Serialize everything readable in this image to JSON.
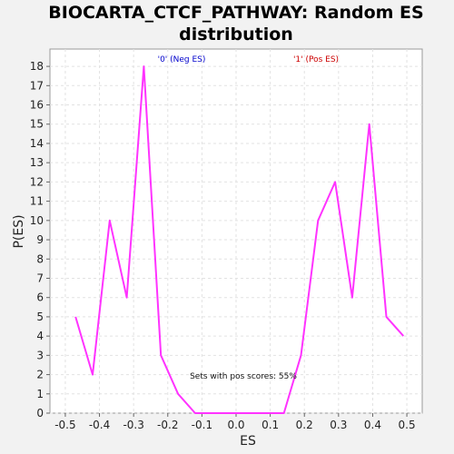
{
  "chart_data": {
    "type": "line",
    "title_lines": [
      "BIOCARTA_CTCF_PATHWAY: Random ES",
      "distribution"
    ],
    "xlabel": "ES",
    "ylabel": "P(ES)",
    "xlim": [
      -0.545,
      0.545
    ],
    "ylim": [
      0,
      18.9
    ],
    "xticks": [
      -0.5,
      -0.4,
      -0.3,
      -0.2,
      -0.1,
      0.0,
      0.1,
      0.2,
      0.3,
      0.4,
      0.5
    ],
    "xtick_labels": [
      "-0.5",
      "-0.4",
      "-0.3",
      "-0.2",
      "-0.1",
      "0.0",
      "0.1",
      "0.2",
      "0.3",
      "0.4",
      "0.5"
    ],
    "yticks": [
      0,
      1,
      2,
      3,
      4,
      5,
      6,
      7,
      8,
      9,
      10,
      11,
      12,
      13,
      14,
      15,
      16,
      17,
      18
    ],
    "ytick_labels": [
      "0",
      "1",
      "2",
      "3",
      "4",
      "5",
      "6",
      "7",
      "8",
      "9",
      "10",
      "11",
      "12",
      "13",
      "14",
      "15",
      "16",
      "17",
      "18"
    ],
    "grid": true,
    "legend": [
      {
        "label": "'0' (Neg ES)",
        "color": "#0000cc"
      },
      {
        "label": "'1' (Pos ES)",
        "color": "#cc0000"
      }
    ],
    "annotation": "Sets with pos scores: 55%",
    "series": [
      {
        "color": "#ff33ff",
        "x": [
          -0.47,
          -0.42,
          -0.37,
          -0.32,
          -0.27,
          -0.22,
          -0.17,
          -0.12,
          -0.07,
          -0.02,
          0.04,
          0.09,
          0.14,
          0.19,
          0.24,
          0.29,
          0.34,
          0.39,
          0.44,
          0.49
        ],
        "y": [
          5,
          2,
          10,
          6,
          18,
          3,
          1,
          0,
          0,
          0,
          0,
          0,
          0,
          3,
          10,
          12,
          6,
          15,
          5,
          4
        ]
      }
    ]
  }
}
